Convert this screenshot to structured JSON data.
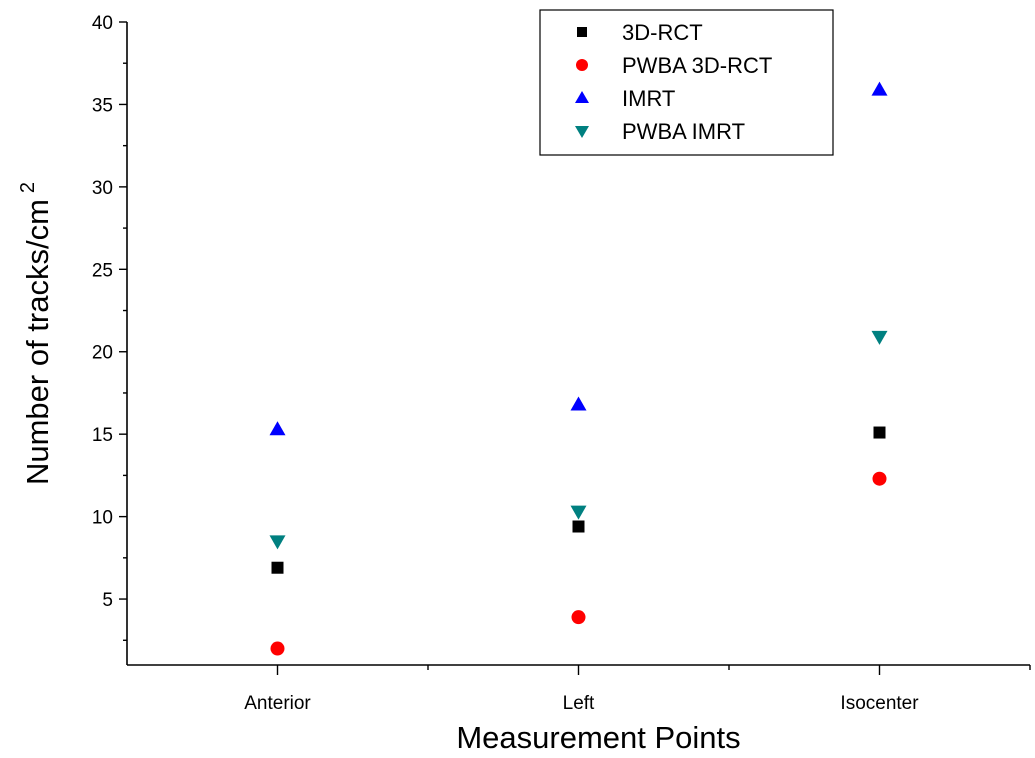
{
  "chart_data": {
    "type": "scatter",
    "categories": [
      "Anterior",
      "Left",
      "Isocenter"
    ],
    "xlabel": "Measurement Points",
    "ylabel": "Number of tracks/cm",
    "ylabel_superscript": "2",
    "ylim": [
      1,
      40
    ],
    "yticks": [
      5,
      10,
      15,
      20,
      25,
      30,
      35,
      40
    ],
    "grid": false,
    "legend_position": "top-center",
    "series": [
      {
        "name": "3D-RCT",
        "marker": "square",
        "color": "#000000",
        "values": [
          6.9,
          9.4,
          15.1
        ]
      },
      {
        "name": "PWBA 3D-RCT",
        "marker": "circle",
        "color": "#ff0000",
        "values": [
          2.0,
          3.9,
          12.3
        ]
      },
      {
        "name": "IMRT",
        "marker": "triangle-up",
        "color": "#0000ff",
        "values": [
          15.3,
          16.8,
          35.9
        ]
      },
      {
        "name": "PWBA IMRT",
        "marker": "triangle-down",
        "color": "#008080",
        "values": [
          8.5,
          10.3,
          20.9
        ]
      }
    ]
  }
}
